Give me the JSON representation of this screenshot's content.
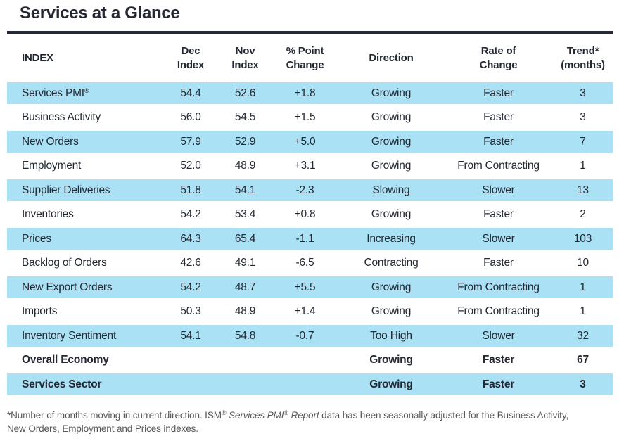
{
  "page": {
    "title": "Services at a Glance"
  },
  "colors": {
    "row_highlight": "#abe1f5",
    "ink": "#232832",
    "footnote_gray": "#55575b"
  },
  "table": {
    "header": {
      "index": "INDEX",
      "dec_line1": "Dec",
      "dec_line2": "Index",
      "nov_line1": "Nov",
      "nov_line2": "Index",
      "chg_line1": "% Point",
      "chg_line2": "Change",
      "direction": "Direction",
      "rate_line1": "Rate of",
      "rate_line2": "Change",
      "trend_line1": "Trend*",
      "trend_line2": "(months)"
    },
    "rows": [
      {
        "name": "Services PMI",
        "name_sup": "®",
        "dec": "54.4",
        "nov": "52.6",
        "change": "+1.8",
        "direction": "Growing",
        "rate": "Faster",
        "trend": "3"
      },
      {
        "name": "Business Activity",
        "dec": "56.0",
        "nov": "54.5",
        "change": "+1.5",
        "direction": "Growing",
        "rate": "Faster",
        "trend": "3"
      },
      {
        "name": "New Orders",
        "dec": "57.9",
        "nov": "52.9",
        "change": "+5.0",
        "direction": "Growing",
        "rate": "Faster",
        "trend": "7"
      },
      {
        "name": "Employment",
        "dec": "52.0",
        "nov": "48.9",
        "change": "+3.1",
        "direction": "Growing",
        "rate": "From Contracting",
        "trend": "1"
      },
      {
        "name": "Supplier Deliveries",
        "dec": "51.8",
        "nov": "54.1",
        "change": "-2.3",
        "direction": "Slowing",
        "rate": "Slower",
        "trend": "13"
      },
      {
        "name": "Inventories",
        "dec": "54.2",
        "nov": "53.4",
        "change": "+0.8",
        "direction": "Growing",
        "rate": "Faster",
        "trend": "2"
      },
      {
        "name": "Prices",
        "dec": "64.3",
        "nov": "65.4",
        "change": "-1.1",
        "direction": "Increasing",
        "rate": "Slower",
        "trend": "103"
      },
      {
        "name": "Backlog of Orders",
        "dec": "42.6",
        "nov": "49.1",
        "change": "-6.5",
        "direction": "Contracting",
        "rate": "Faster",
        "trend": "10"
      },
      {
        "name": "New Export Orders",
        "dec": "54.2",
        "nov": "48.7",
        "change": "+5.5",
        "direction": "Growing",
        "rate": "From Contracting",
        "trend": "1"
      },
      {
        "name": "Imports",
        "dec": "50.3",
        "nov": "48.9",
        "change": "+1.4",
        "direction": "Growing",
        "rate": "From Contracting",
        "trend": "1"
      },
      {
        "name": "Inventory Sentiment",
        "dec": "54.1",
        "nov": "54.8",
        "change": "-0.7",
        "direction": "Too High",
        "rate": "Slower",
        "trend": "32"
      },
      {
        "name": "Overall Economy",
        "summary": true,
        "dec": "",
        "nov": "",
        "change": "",
        "direction": "Growing",
        "rate": "Faster",
        "trend": "67"
      },
      {
        "name": "Services Sector",
        "summary": true,
        "dec": "",
        "nov": "",
        "change": "",
        "direction": "Growing",
        "rate": "Faster",
        "trend": "3"
      }
    ]
  },
  "footnote": {
    "parts": [
      {
        "text": "*Number of months moving in current direction. ISM",
        "style": "normal"
      },
      {
        "text": "®",
        "style": "sup"
      },
      {
        "text": " Services PMI",
        "style": "italic"
      },
      {
        "text": "®",
        "style": "sup-italic"
      },
      {
        "text": " Report",
        "style": "italic"
      },
      {
        "text": " data has been seasonally adjusted for the Business Activity,",
        "style": "normal"
      },
      {
        "style": "break"
      },
      {
        "text": "New Orders, Employment and Prices indexes.",
        "style": "normal"
      }
    ]
  }
}
